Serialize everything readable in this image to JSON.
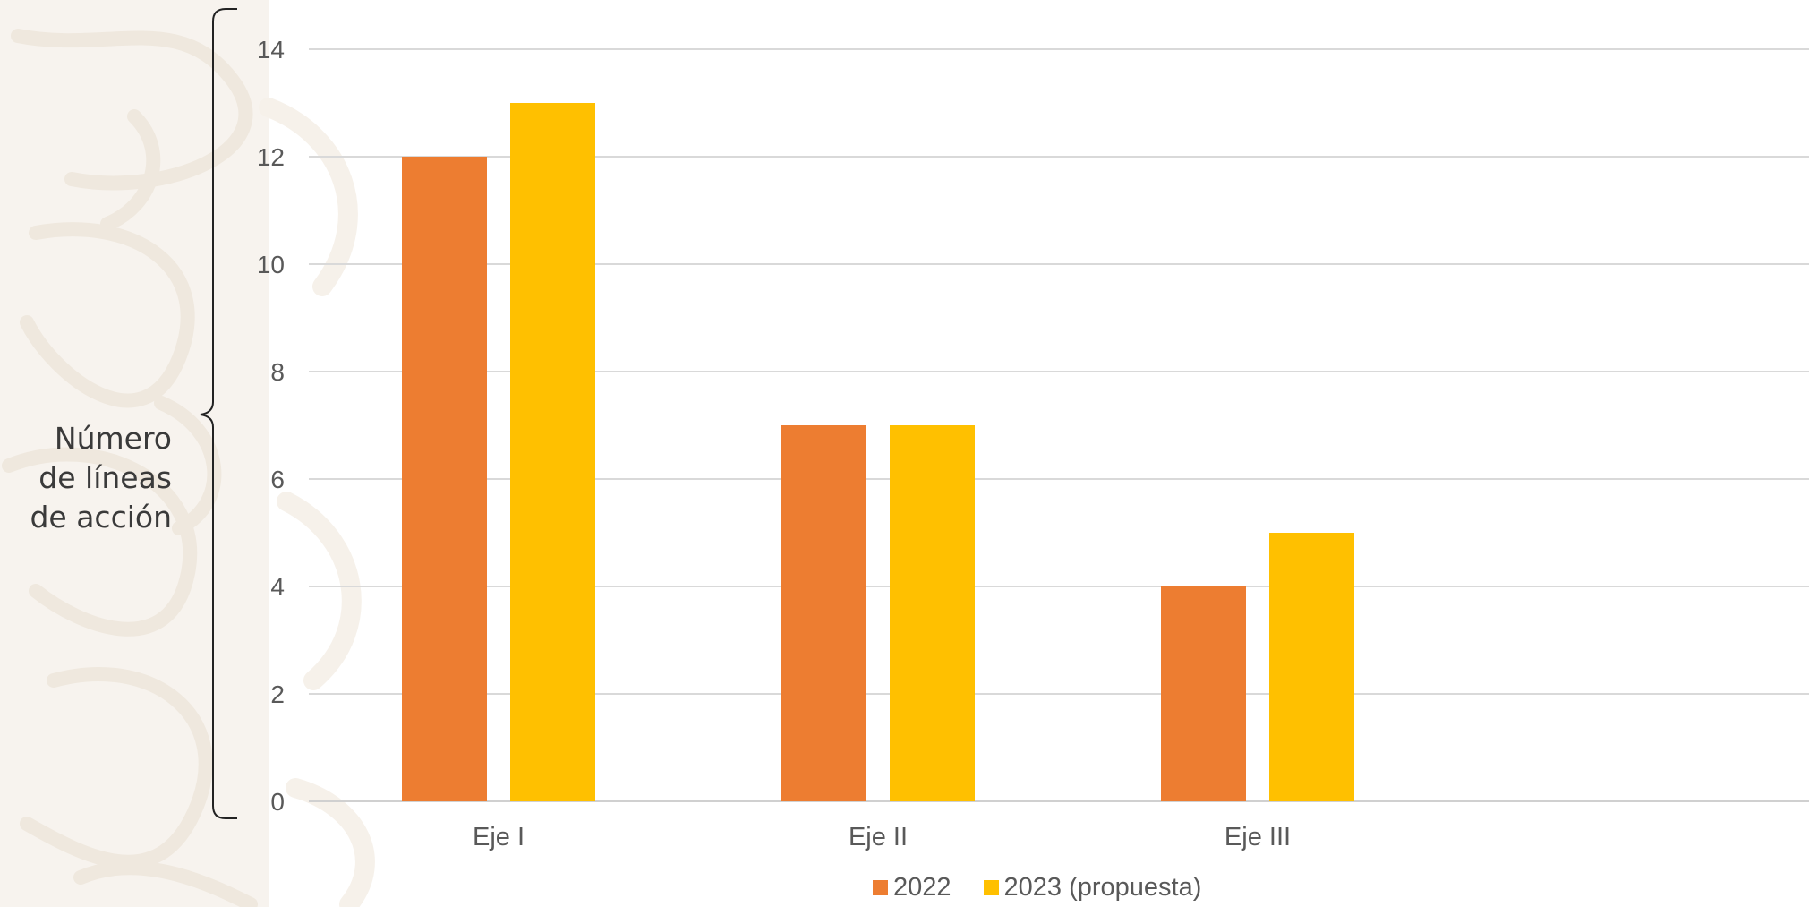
{
  "ylabel_lines": [
    "Número",
    "de líneas",
    "de acción"
  ],
  "chart_data": {
    "type": "bar",
    "categories": [
      "Eje I",
      "Eje II",
      "Eje III"
    ],
    "series": [
      {
        "name": "2022",
        "values": [
          12,
          7,
          4
        ],
        "color": "#ED7D31"
      },
      {
        "name": "2023 (propuesta)",
        "values": [
          13,
          7,
          5
        ],
        "color": "#FFC000"
      }
    ],
    "ylabel": "Número de líneas de acción",
    "ylim": [
      0,
      14
    ],
    "yticks": [
      "0",
      "2",
      "4",
      "6",
      "8",
      "10",
      "12",
      "14"
    ],
    "grid": true,
    "legend_position": "bottom"
  }
}
